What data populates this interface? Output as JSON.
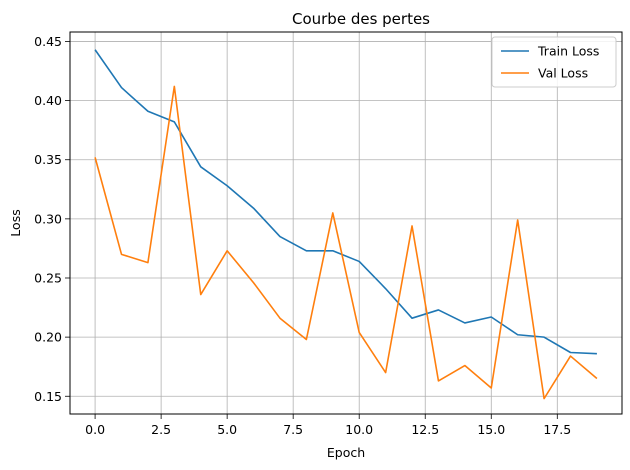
{
  "chart_data": {
    "type": "line",
    "title": "Courbe des pertes",
    "xlabel": "Epoch",
    "ylabel": "Loss",
    "xlim": [
      -0.95,
      19.95
    ],
    "ylim": [
      0.135,
      0.458
    ],
    "xticks": [
      0.0,
      2.5,
      5.0,
      7.5,
      10.0,
      12.5,
      15.0,
      17.5
    ],
    "xtick_labels": [
      "0.0",
      "2.5",
      "5.0",
      "7.5",
      "10.0",
      "12.5",
      "15.0",
      "17.5"
    ],
    "yticks": [
      0.15,
      0.2,
      0.25,
      0.3,
      0.35,
      0.4,
      0.45
    ],
    "ytick_labels": [
      "0.15",
      "0.20",
      "0.25",
      "0.30",
      "0.35",
      "0.40",
      "0.45"
    ],
    "grid": true,
    "legend_position": "top-right",
    "x": [
      0,
      1,
      2,
      3,
      4,
      5,
      6,
      7,
      8,
      9,
      10,
      11,
      12,
      13,
      14,
      15,
      16,
      17,
      18,
      19
    ],
    "series": [
      {
        "name": "Train Loss",
        "color": "#1f77b4",
        "values": [
          0.443,
          0.411,
          0.391,
          0.382,
          0.344,
          0.328,
          0.309,
          0.285,
          0.273,
          0.273,
          0.264,
          0.241,
          0.216,
          0.223,
          0.212,
          0.217,
          0.202,
          0.2,
          0.187,
          0.186
        ]
      },
      {
        "name": "Val Loss",
        "color": "#ff7f0e",
        "values": [
          0.352,
          0.27,
          0.263,
          0.412,
          0.236,
          0.273,
          0.246,
          0.216,
          0.198,
          0.305,
          0.204,
          0.17,
          0.294,
          0.163,
          0.176,
          0.157,
          0.299,
          0.148,
          0.184,
          0.165
        ]
      }
    ]
  }
}
